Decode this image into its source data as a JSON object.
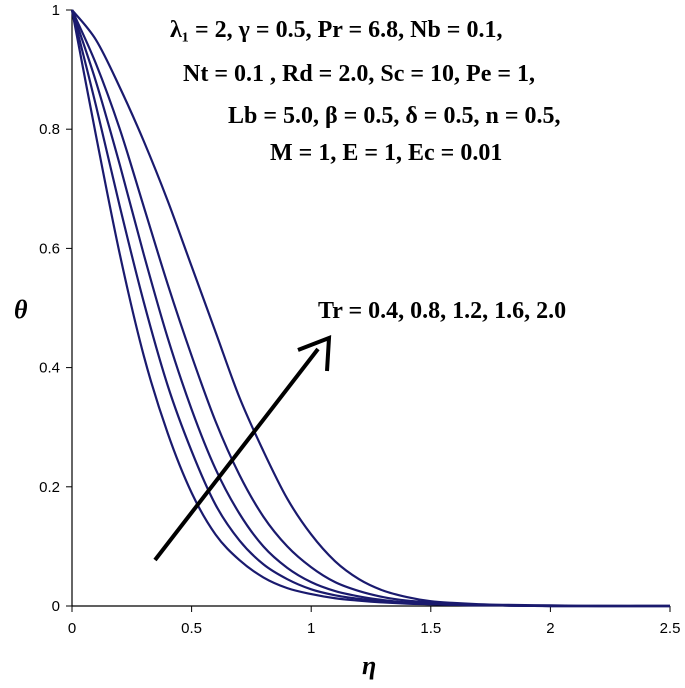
{
  "chart_data": {
    "type": "line",
    "xlabel": "η",
    "ylabel": "θ",
    "xlim": [
      0,
      2.5
    ],
    "ylim": [
      0,
      1
    ],
    "x_ticks": [
      "0",
      "0.5",
      "1",
      "1.5",
      "2",
      "2.5"
    ],
    "y_ticks": [
      "0",
      "0.2",
      "0.4",
      "0.6",
      "0.8",
      "1"
    ],
    "line_color": "#1a1a6e",
    "x": [
      0,
      0.1,
      0.2,
      0.3,
      0.4,
      0.5,
      0.6,
      0.7,
      0.8,
      0.9,
      1.0,
      1.1,
      1.2,
      1.3,
      1.4,
      1.5,
      1.6,
      1.7,
      1.8,
      2.0,
      2.2,
      2.5
    ],
    "series": [
      {
        "values": [
          1,
          0.79,
          0.59,
          0.42,
          0.29,
          0.19,
          0.12,
          0.077,
          0.048,
          0.03,
          0.02,
          0.013,
          0.009,
          0.006,
          0.004,
          0.003,
          0.002,
          0.001,
          0.001,
          0,
          0,
          0
        ]
      },
      {
        "values": [
          1,
          0.84,
          0.67,
          0.51,
          0.37,
          0.26,
          0.17,
          0.11,
          0.07,
          0.045,
          0.028,
          0.018,
          0.012,
          0.008,
          0.005,
          0.003,
          0.002,
          0.001,
          0.001,
          0,
          0,
          0
        ]
      },
      {
        "values": [
          1,
          0.88,
          0.74,
          0.59,
          0.45,
          0.33,
          0.23,
          0.155,
          0.1,
          0.064,
          0.04,
          0.025,
          0.016,
          0.01,
          0.006,
          0.004,
          0.003,
          0.002,
          0.001,
          0,
          0,
          0
        ]
      },
      {
        "values": [
          1,
          0.91,
          0.8,
          0.67,
          0.54,
          0.42,
          0.31,
          0.22,
          0.15,
          0.1,
          0.065,
          0.04,
          0.025,
          0.015,
          0.009,
          0.006,
          0.004,
          0.002,
          0.001,
          0,
          0,
          0
        ]
      },
      {
        "values": [
          1,
          0.95,
          0.87,
          0.78,
          0.68,
          0.57,
          0.46,
          0.35,
          0.26,
          0.18,
          0.12,
          0.075,
          0.045,
          0.026,
          0.015,
          0.008,
          0.005,
          0.003,
          0.002,
          0.001,
          0,
          0
        ]
      }
    ],
    "annotations": {
      "parameters": [
        "λ₁ = 2,  γ = 0.5,  Pr = 6.8,  Nb = 0.1,",
        "Nt = 0.1 , Rd = 2.0, Sc = 10,  Pe = 1,",
        "Lb = 5.0, β = 0.5, δ = 0.5,  n = 0.5,",
        "M = 1, E = 1, Ec = 0.01"
      ],
      "arrow_label": "Tr = 0.4, 0.8, 1.2, 1.6, 2.0"
    }
  }
}
